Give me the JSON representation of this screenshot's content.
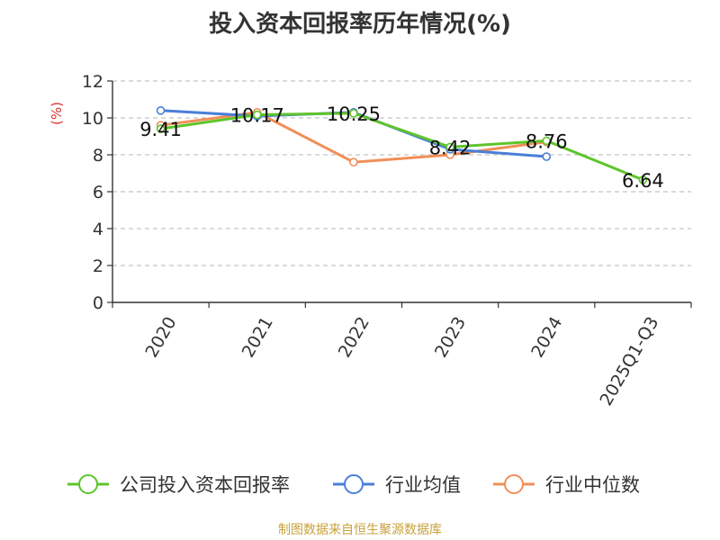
{
  "source": "制图数据来自恒生聚源数据库",
  "chart_data": {
    "type": "line",
    "title": "投入资本回报率历年情况(%)",
    "ylabel": "(%)",
    "xlabel": "",
    "categories": [
      "2020",
      "2021",
      "2022",
      "2023",
      "2024",
      "2025Q1-Q3"
    ],
    "ylim": [
      0,
      12
    ],
    "yticks": [
      0,
      2,
      4,
      6,
      8,
      10,
      12
    ],
    "grid": true,
    "legend_position": "bottom",
    "series": [
      {
        "name": "公司投入资本回报率",
        "color": "#5ec42b",
        "values": [
          9.41,
          10.17,
          10.25,
          8.42,
          8.76,
          6.64
        ],
        "labels": [
          "9.41",
          "10.17",
          "10.25",
          "8.42",
          "8.76",
          "6.64"
        ]
      },
      {
        "name": "行业均值",
        "color": "#4a7fd8",
        "values": [
          10.4,
          10.1,
          10.3,
          8.3,
          7.9,
          null
        ]
      },
      {
        "name": "行业中位数",
        "color": "#f08f58",
        "values": [
          9.6,
          10.3,
          7.6,
          8.0,
          8.7,
          null
        ]
      }
    ]
  }
}
